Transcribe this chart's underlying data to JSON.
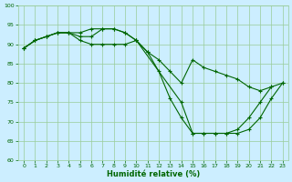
{
  "xlabel": "Humidité relative (%)",
  "bg_color": "#cceeff",
  "grid_color": "#99cc99",
  "line_color": "#006600",
  "xlim": [
    -0.5,
    23.5
  ],
  "ylim": [
    60,
    100
  ],
  "yticks": [
    60,
    65,
    70,
    75,
    80,
    85,
    90,
    95,
    100
  ],
  "xticks": [
    0,
    1,
    2,
    3,
    4,
    5,
    6,
    7,
    8,
    9,
    10,
    11,
    12,
    13,
    14,
    15,
    16,
    17,
    18,
    19,
    20,
    21,
    22,
    23
  ],
  "line1_x": [
    0,
    1,
    2,
    3,
    4,
    5,
    6,
    7,
    8,
    9,
    10,
    11,
    12,
    13,
    14,
    15,
    16,
    17,
    18,
    19,
    20,
    21,
    22
  ],
  "line1_y": [
    89,
    91,
    92,
    93,
    93,
    92,
    92,
    94,
    94,
    93,
    91,
    88,
    83,
    76,
    71,
    67,
    67,
    67,
    67,
    68,
    71,
    75,
    79
  ],
  "line2_x": [
    0,
    1,
    2,
    3,
    4,
    5,
    6,
    7,
    8,
    9,
    10,
    11,
    12,
    13,
    14,
    15,
    16,
    17,
    18,
    19,
    20,
    21,
    22,
    23
  ],
  "line2_y": [
    89,
    91,
    92,
    93,
    93,
    91,
    90,
    90,
    90,
    90,
    91,
    88,
    86,
    83,
    80,
    86,
    84,
    83,
    82,
    81,
    79,
    78,
    79,
    80
  ],
  "line3_x": [
    0,
    1,
    2,
    3,
    4,
    5,
    6,
    7,
    8,
    9,
    10,
    14,
    15,
    16,
    17,
    18,
    19,
    20,
    21,
    22,
    23
  ],
  "line3_y": [
    89,
    91,
    92,
    93,
    93,
    93,
    94,
    94,
    94,
    93,
    91,
    75,
    67,
    67,
    67,
    67,
    67,
    68,
    71,
    76,
    80
  ]
}
